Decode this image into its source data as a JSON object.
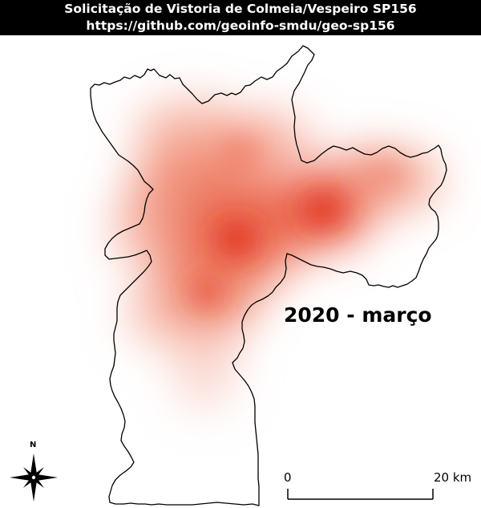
{
  "header": {
    "title": "Solicitação de Vistoria de Colmeia/Vespeiro SP156",
    "url": "https://github.com/geoinfo-smdu/geo-sp156"
  },
  "map": {
    "period_label": "2020 - março",
    "heat_color": "#e8301c",
    "boundary_color": "#000000"
  },
  "north_arrow": {
    "label": "N",
    "icon": "compass-rose-icon"
  },
  "scale_bar": {
    "start_label": "0",
    "end_label": "20 km"
  }
}
